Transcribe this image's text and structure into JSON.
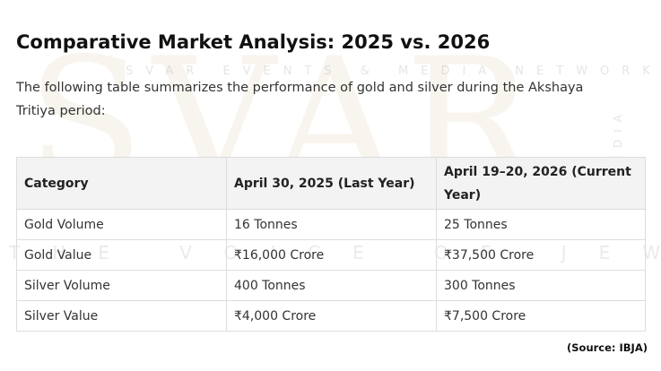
{
  "header": {
    "title": "Comparative Market Analysis: 2025 vs. 2026"
  },
  "intro": "The following table summarizes the performance of gold and silver during the Akshaya Tritiya period:",
  "table": {
    "columns": [
      "Category",
      "April 30, 2025 (Last Year)",
      "April 19–20, 2026 (Current Year)"
    ],
    "rows": [
      [
        "Gold Volume",
        "16 Tonnes",
        "25 Tonnes"
      ],
      [
        "Gold Value",
        "₹16,000 Crore",
        "₹37,500 Crore"
      ],
      [
        "Silver Volume",
        "400 Tonnes",
        "300 Tonnes"
      ],
      [
        "Silver Value",
        "₹4,000 Crore",
        "₹7,500 Crore"
      ]
    ]
  },
  "source": "(Source: IBJA)",
  "watermark": {
    "logo": "SVAR",
    "network": "SVAR EVENTS & MEDIA NETWORK",
    "tagline": "THE VOICE OF JEWELLERS",
    "side": "MEDIA"
  }
}
